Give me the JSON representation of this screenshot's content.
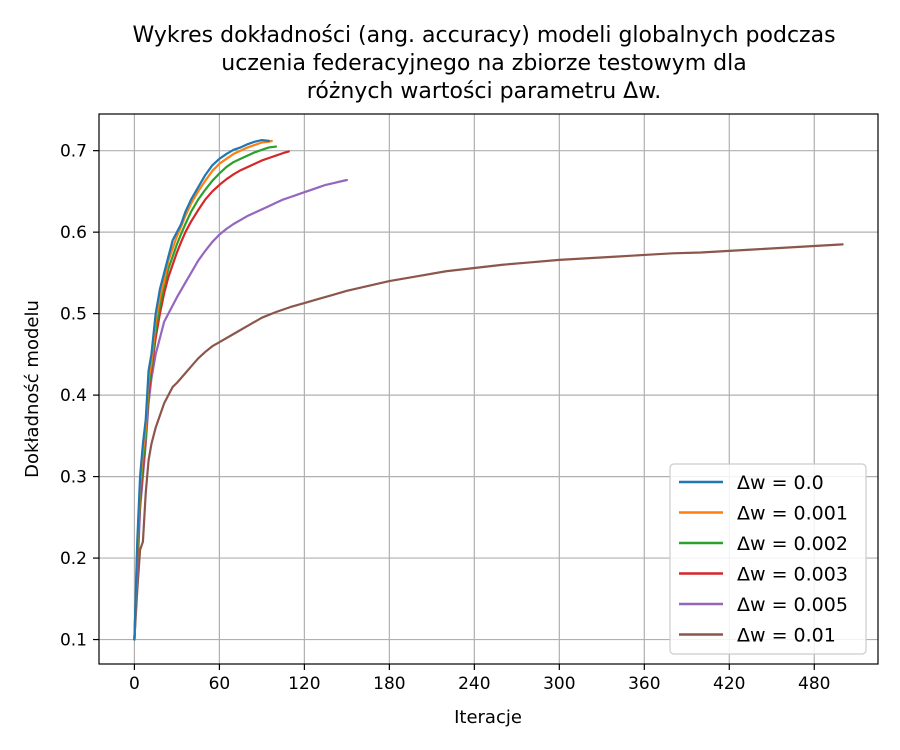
{
  "chart_data": {
    "type": "line",
    "title_lines": [
      "Wykres dokładności (ang. accuracy) modeli globalnych podczas",
      "uczenia federacyjnego na zbiorze testowym dla",
      "różnych wartości parametru Δw."
    ],
    "xlabel": "Iteracje",
    "ylabel": "Dokładność modelu",
    "xlim": [
      -25,
      525
    ],
    "ylim": [
      0.07,
      0.745
    ],
    "xticks": [
      0,
      60,
      120,
      180,
      240,
      300,
      360,
      420,
      480
    ],
    "yticks": [
      0.1,
      0.2,
      0.3,
      0.4,
      0.5,
      0.6,
      0.7
    ],
    "ytick_labels": [
      "0.1",
      "0.2",
      "0.3",
      "0.4",
      "0.5",
      "0.6",
      "0.7"
    ],
    "grid": true,
    "legend_position": "lower-right",
    "series": [
      {
        "name": "Δw = 0.0",
        "color": "#1f77b4",
        "x": [
          0,
          2,
          4,
          6,
          8,
          10,
          12,
          15,
          18,
          21,
          24,
          27,
          30,
          33,
          36,
          40,
          45,
          50,
          55,
          60,
          65,
          70,
          75,
          80,
          85,
          90,
          95
        ],
        "y": [
          0.1,
          0.22,
          0.3,
          0.34,
          0.37,
          0.43,
          0.45,
          0.5,
          0.53,
          0.55,
          0.57,
          0.59,
          0.6,
          0.61,
          0.625,
          0.64,
          0.655,
          0.67,
          0.682,
          0.69,
          0.696,
          0.701,
          0.704,
          0.708,
          0.711,
          0.713,
          0.712
        ]
      },
      {
        "name": "Δw = 0.001",
        "color": "#ff7f0e",
        "x": [
          0,
          2,
          4,
          6,
          8,
          10,
          12,
          15,
          18,
          21,
          24,
          27,
          30,
          33,
          36,
          40,
          45,
          50,
          55,
          60,
          65,
          70,
          75,
          80,
          85,
          90,
          95,
          97
        ],
        "y": [
          0.1,
          0.21,
          0.29,
          0.33,
          0.36,
          0.42,
          0.44,
          0.49,
          0.52,
          0.54,
          0.565,
          0.58,
          0.595,
          0.607,
          0.62,
          0.635,
          0.65,
          0.663,
          0.675,
          0.684,
          0.69,
          0.696,
          0.7,
          0.704,
          0.707,
          0.71,
          0.711,
          0.712
        ]
      },
      {
        "name": "Δw = 0.002",
        "color": "#2ca02c",
        "x": [
          0,
          2,
          4,
          6,
          8,
          10,
          12,
          15,
          18,
          21,
          24,
          27,
          30,
          33,
          36,
          40,
          45,
          50,
          55,
          60,
          65,
          70,
          75,
          80,
          85,
          90,
          95,
          100
        ],
        "y": [
          0.1,
          0.2,
          0.28,
          0.32,
          0.35,
          0.41,
          0.435,
          0.48,
          0.51,
          0.535,
          0.555,
          0.57,
          0.585,
          0.598,
          0.61,
          0.625,
          0.64,
          0.652,
          0.663,
          0.672,
          0.68,
          0.686,
          0.69,
          0.694,
          0.698,
          0.701,
          0.704,
          0.705
        ]
      },
      {
        "name": "Δw = 0.003",
        "color": "#d62728",
        "x": [
          0,
          2,
          4,
          6,
          8,
          10,
          12,
          15,
          18,
          21,
          24,
          27,
          30,
          33,
          36,
          40,
          45,
          50,
          55,
          60,
          65,
          70,
          75,
          80,
          85,
          90,
          95,
          100,
          105,
          109
        ],
        "y": [
          0.1,
          0.19,
          0.27,
          0.31,
          0.35,
          0.4,
          0.43,
          0.47,
          0.5,
          0.525,
          0.545,
          0.56,
          0.575,
          0.588,
          0.6,
          0.613,
          0.627,
          0.64,
          0.65,
          0.658,
          0.665,
          0.671,
          0.676,
          0.68,
          0.684,
          0.688,
          0.691,
          0.694,
          0.697,
          0.699
        ]
      },
      {
        "name": "Δw = 0.005",
        "color": "#9467bd",
        "x": [
          0,
          2,
          4,
          6,
          8,
          10,
          12,
          15,
          18,
          21,
          24,
          27,
          30,
          35,
          40,
          45,
          50,
          55,
          60,
          65,
          70,
          75,
          80,
          85,
          90,
          95,
          100,
          105,
          110,
          115,
          120,
          125,
          130,
          135,
          140,
          145,
          150
        ],
        "y": [
          0.1,
          0.18,
          0.26,
          0.3,
          0.34,
          0.39,
          0.42,
          0.45,
          0.47,
          0.49,
          0.5,
          0.51,
          0.52,
          0.535,
          0.55,
          0.565,
          0.577,
          0.588,
          0.597,
          0.604,
          0.61,
          0.615,
          0.62,
          0.624,
          0.628,
          0.632,
          0.636,
          0.64,
          0.643,
          0.646,
          0.649,
          0.652,
          0.655,
          0.658,
          0.66,
          0.662,
          0.664
        ]
      },
      {
        "name": "Δw = 0.01",
        "color": "#8c564b",
        "x": [
          0,
          2,
          4,
          6,
          8,
          10,
          12,
          15,
          18,
          21,
          24,
          27,
          30,
          35,
          40,
          45,
          50,
          55,
          60,
          70,
          80,
          90,
          100,
          110,
          120,
          130,
          140,
          150,
          160,
          170,
          180,
          200,
          220,
          240,
          260,
          280,
          300,
          320,
          340,
          360,
          380,
          400,
          420,
          440,
          460,
          480,
          500
        ],
        "y": [
          0.1,
          0.16,
          0.21,
          0.22,
          0.28,
          0.32,
          0.34,
          0.36,
          0.375,
          0.39,
          0.4,
          0.41,
          0.415,
          0.425,
          0.435,
          0.445,
          0.453,
          0.46,
          0.465,
          0.475,
          0.485,
          0.495,
          0.502,
          0.508,
          0.513,
          0.518,
          0.523,
          0.528,
          0.532,
          0.536,
          0.54,
          0.546,
          0.552,
          0.556,
          0.56,
          0.563,
          0.566,
          0.568,
          0.57,
          0.572,
          0.574,
          0.575,
          0.577,
          0.579,
          0.581,
          0.583,
          0.585
        ]
      }
    ]
  }
}
